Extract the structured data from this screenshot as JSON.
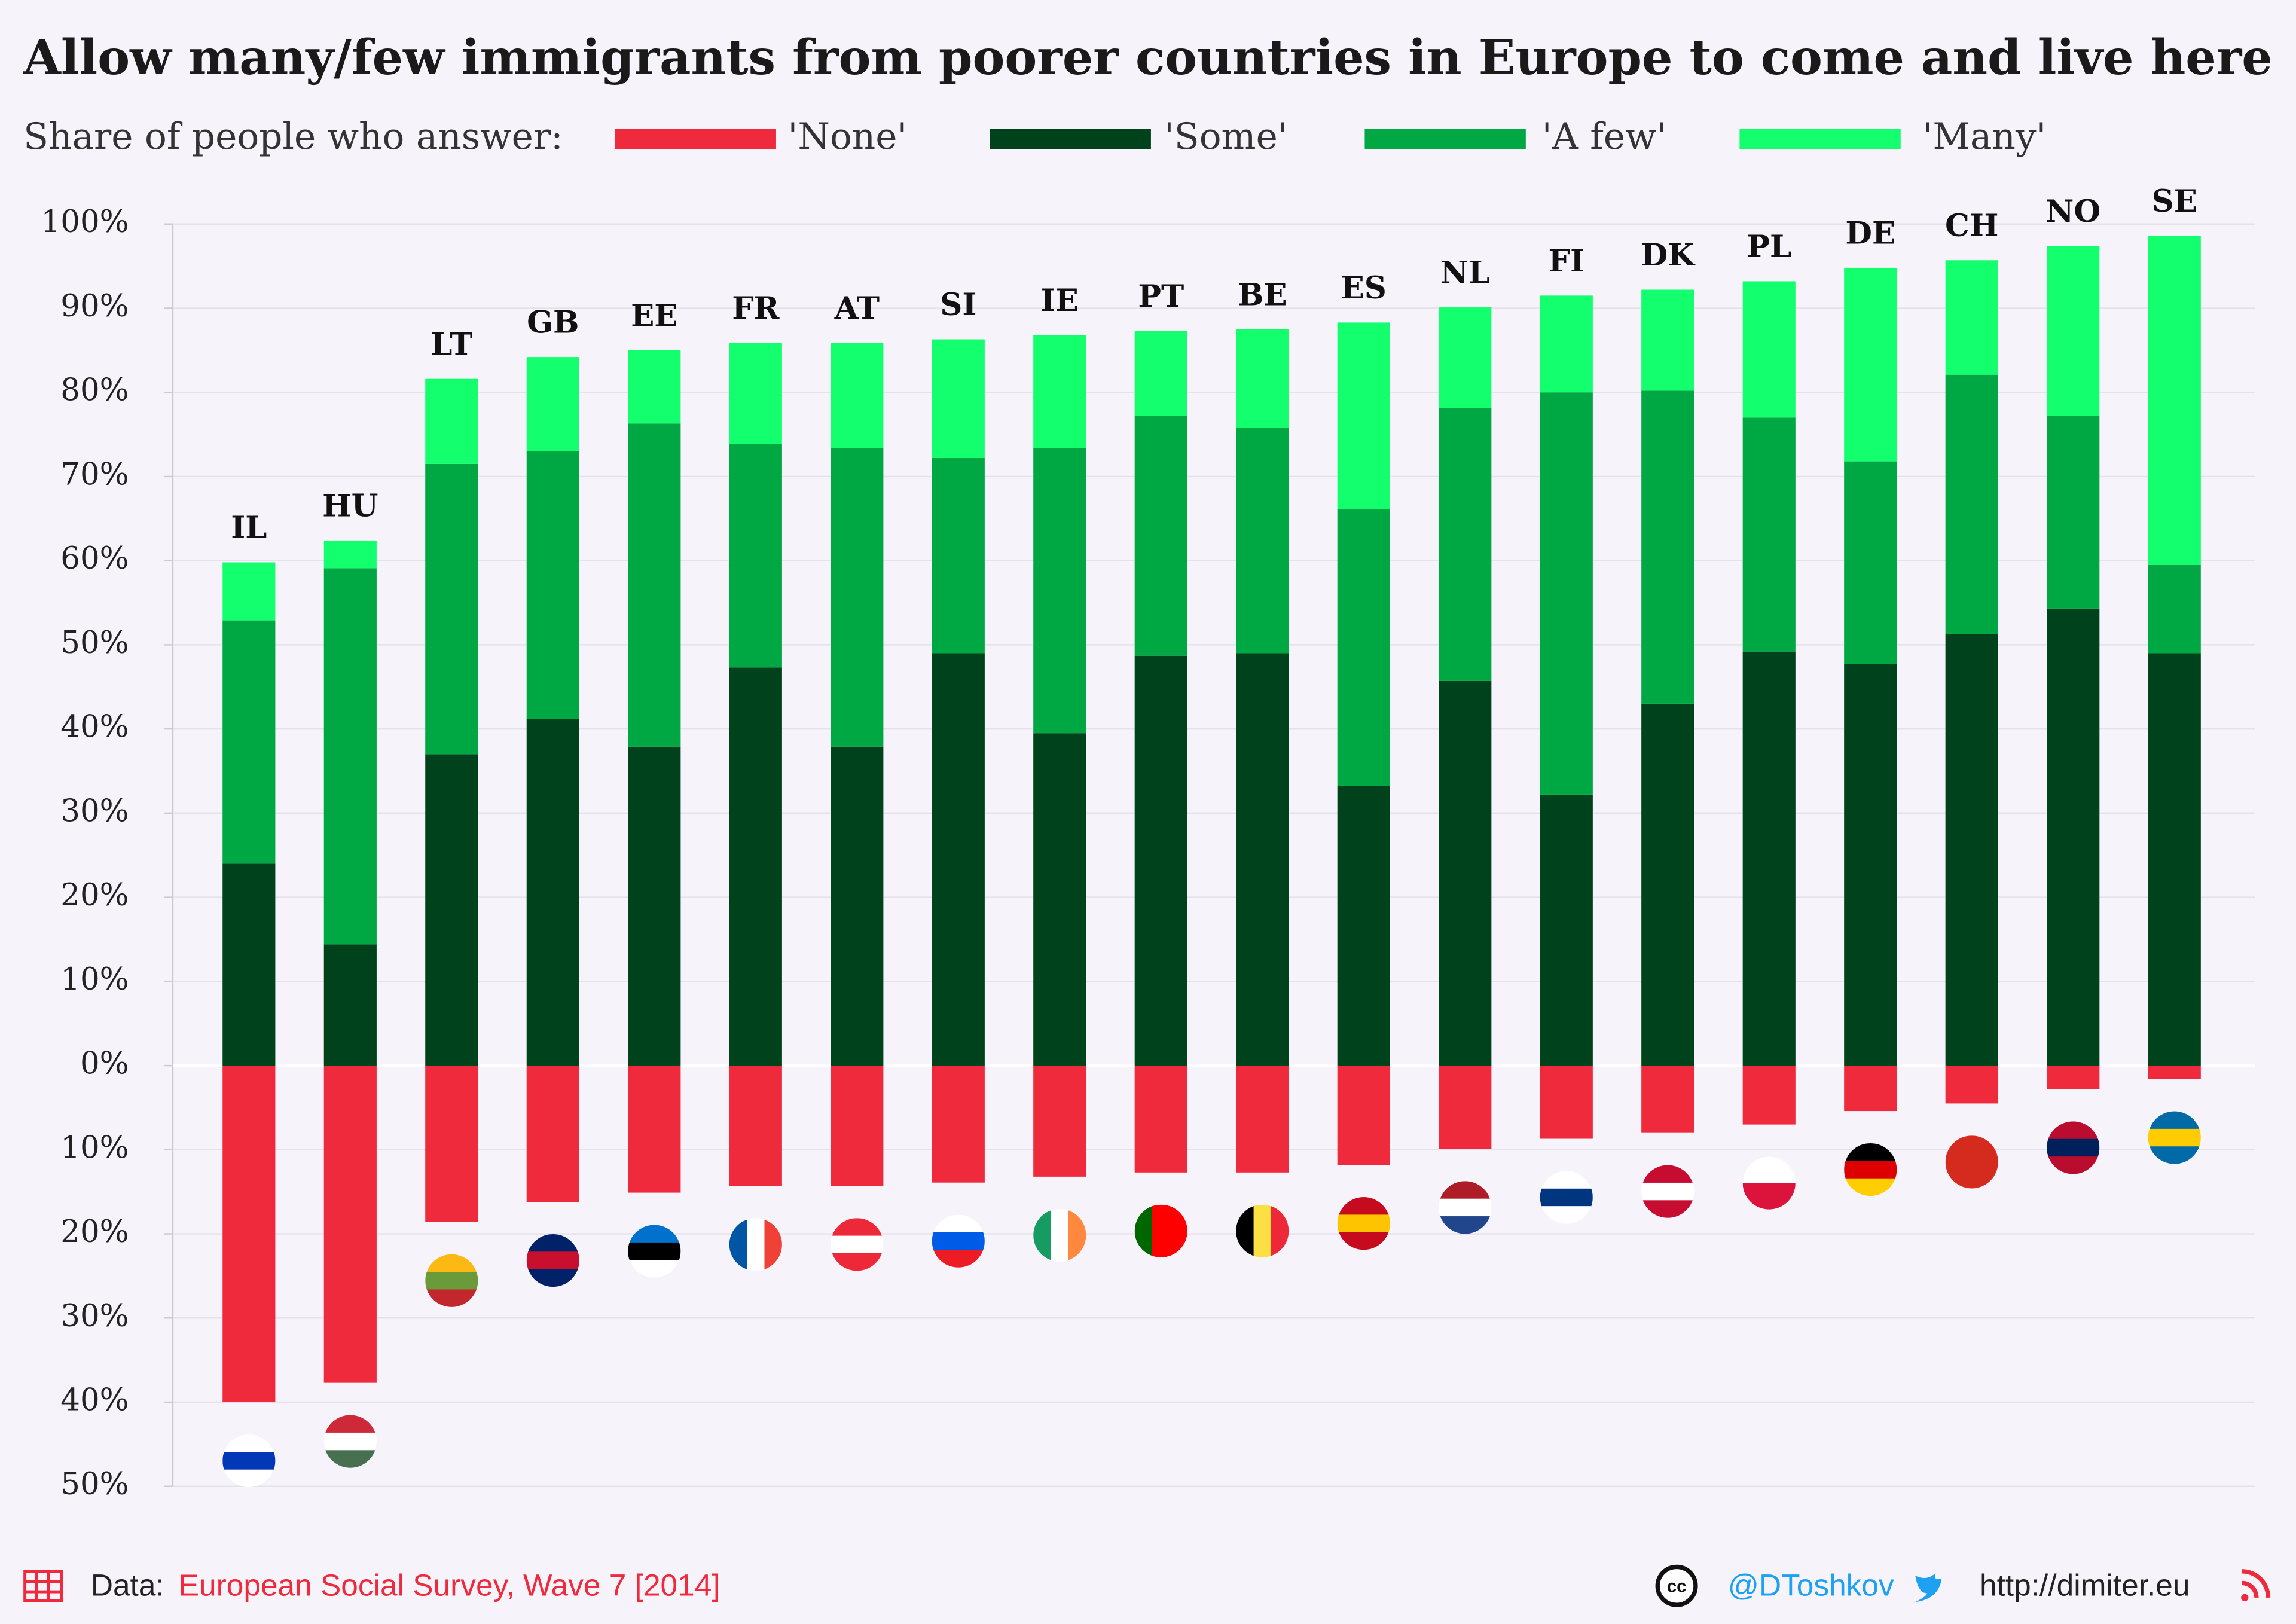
{
  "chart_data": {
    "type": "stacked-bar",
    "title": "Allow many/few immigrants from poorer countries in Europe to come and live here",
    "legend_title": "Share of people who answer:",
    "categories": [
      "IL",
      "HU",
      "LT",
      "GB",
      "EE",
      "FR",
      "AT",
      "SI",
      "IE",
      "PT",
      "BE",
      "ES",
      "NL",
      "FI",
      "DK",
      "PL",
      "DE",
      "CH",
      "NO",
      "SE"
    ],
    "series": [
      {
        "name": "'None'",
        "color": "#ee2a3c",
        "values": [
          -40.0,
          -37.7,
          -18.6,
          -16.2,
          -15.1,
          -14.3,
          -14.3,
          -13.9,
          -13.2,
          -12.7,
          -12.7,
          -11.8,
          -9.9,
          -8.7,
          -8.0,
          -7.0,
          -5.4,
          -4.5,
          -2.8,
          -1.6
        ]
      },
      {
        "name": "'Some'",
        "color": "#00421b",
        "values": [
          24.0,
          14.4,
          37.0,
          41.2,
          37.9,
          47.3,
          37.9,
          49.0,
          39.5,
          48.7,
          49.0,
          33.2,
          45.7,
          32.2,
          43.0,
          49.2,
          47.7,
          51.3,
          54.3,
          49.0
        ]
      },
      {
        "name": "'A few'",
        "color": "#00a843",
        "values": [
          28.9,
          44.7,
          34.5,
          31.8,
          38.4,
          26.6,
          35.5,
          23.2,
          33.9,
          28.5,
          26.8,
          32.9,
          32.4,
          47.8,
          37.2,
          27.8,
          24.1,
          30.8,
          22.9,
          10.5
        ]
      },
      {
        "name": "'Many'",
        "color": "#14ff6e",
        "values": [
          6.9,
          3.3,
          10.1,
          11.2,
          8.7,
          12.0,
          12.5,
          14.1,
          13.4,
          10.1,
          11.7,
          22.2,
          12.0,
          11.5,
          12.0,
          16.2,
          23.0,
          13.6,
          20.2,
          39.1
        ]
      }
    ],
    "ylim": [
      -50,
      100
    ],
    "yticks": [
      {
        "value": -50,
        "label": "50%"
      },
      {
        "value": -40,
        "label": "40%"
      },
      {
        "value": -30,
        "label": "30%"
      },
      {
        "value": -20,
        "label": "20%"
      },
      {
        "value": -10,
        "label": "10%"
      },
      {
        "value": 0,
        "label": "0%"
      },
      {
        "value": 10,
        "label": "10%"
      },
      {
        "value": 20,
        "label": "20%"
      },
      {
        "value": 30,
        "label": "30%"
      },
      {
        "value": 40,
        "label": "40%"
      },
      {
        "value": 50,
        "label": "50%"
      },
      {
        "value": 60,
        "label": "60%"
      },
      {
        "value": 70,
        "label": "70%"
      },
      {
        "value": 80,
        "label": "80%"
      },
      {
        "value": 90,
        "label": "90%"
      },
      {
        "value": 100,
        "label": "100%"
      }
    ],
    "grid": true,
    "source_label": "Data:",
    "source": "European Social Survey, Wave 7 [2014]",
    "twitter": "@DToshkov",
    "website": "http://dimiter.eu"
  }
}
